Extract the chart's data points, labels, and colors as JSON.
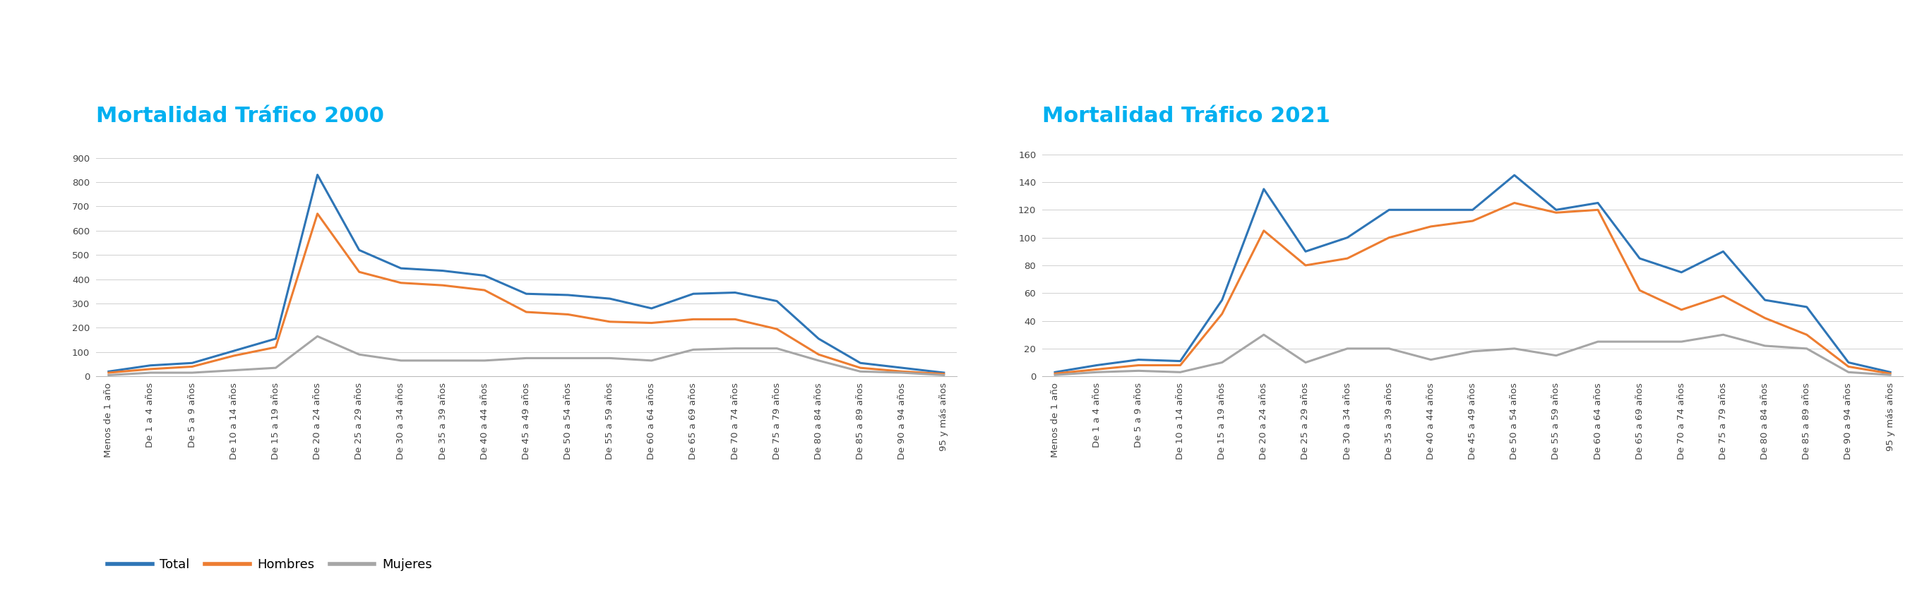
{
  "categories": [
    "Menos de 1 año",
    "De 1 a 4 años",
    "De 5 a 9 años",
    "De 10 a 14 años",
    "De 15 a 19 años",
    "De 20 a 24 años",
    "De 25 a 29 años",
    "De 30 a 34 años",
    "De 35 a 39 años",
    "De 40 a 44 años",
    "De 45 a 49 años",
    "De 50 a 54 años",
    "De 55 a 59 años",
    "De 60 a 64 años",
    "De 65 a 69 años",
    "De 70 a 74 años",
    "De 75 a 79 años",
    "De 80 a 84 años",
    "De 85 a 89 años",
    "De 90 a 94 años",
    "95 y más años"
  ],
  "chart2000": {
    "title": "Mortalidad Tráfico 2000",
    "total": [
      20,
      45,
      55,
      105,
      155,
      830,
      520,
      445,
      435,
      415,
      340,
      335,
      320,
      280,
      340,
      345,
      310,
      155,
      55,
      35,
      15
    ],
    "hombres": [
      15,
      30,
      40,
      85,
      120,
      670,
      430,
      385,
      375,
      355,
      265,
      255,
      225,
      220,
      235,
      235,
      195,
      90,
      35,
      20,
      10
    ],
    "mujeres": [
      5,
      15,
      15,
      25,
      35,
      165,
      90,
      65,
      65,
      65,
      75,
      75,
      75,
      65,
      110,
      115,
      115,
      65,
      20,
      15,
      5
    ],
    "ylim": [
      0,
      1000
    ],
    "yticks": [
      0,
      100,
      200,
      300,
      400,
      500,
      600,
      700,
      800,
      900
    ]
  },
  "chart2021": {
    "title": "Mortalidad Tráfico 2021",
    "total": [
      3,
      8,
      12,
      11,
      55,
      135,
      90,
      100,
      120,
      120,
      120,
      145,
      120,
      125,
      85,
      75,
      90,
      55,
      50,
      10,
      3
    ],
    "hombres": [
      2,
      5,
      8,
      8,
      45,
      105,
      80,
      85,
      100,
      108,
      112,
      125,
      118,
      120,
      62,
      48,
      58,
      42,
      30,
      7,
      2
    ],
    "mujeres": [
      1,
      3,
      4,
      3,
      10,
      30,
      10,
      20,
      20,
      12,
      18,
      20,
      15,
      25,
      25,
      25,
      30,
      22,
      20,
      3,
      1
    ],
    "ylim": [
      0,
      175
    ],
    "yticks": [
      0,
      20,
      40,
      60,
      80,
      100,
      120,
      140,
      160
    ]
  },
  "colors": {
    "total": "#2e75b6",
    "hombres": "#ed7d31",
    "mujeres": "#a6a6a6"
  },
  "title_color": "#00b0f0",
  "title_fontsize": 22,
  "legend_labels": [
    "Total",
    "Hombres",
    "Mujeres"
  ],
  "background_color": "#ffffff",
  "grid_color": "#d0d0d0",
  "line_width": 2.2,
  "tick_fontsize": 9.5,
  "legend_fontsize": 13
}
